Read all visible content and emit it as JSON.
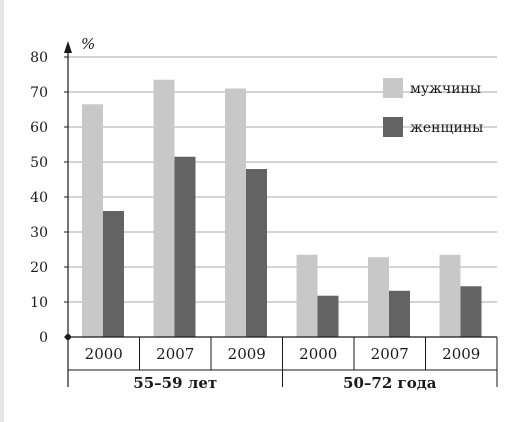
{
  "chart_data": {
    "type": "bar",
    "ylabel": "%",
    "ylim": [
      0,
      80
    ],
    "yticks": [
      "0",
      "10",
      "20",
      "30",
      "40",
      "50",
      "60",
      "70",
      "80"
    ],
    "grid": true,
    "legend_position": "top-right",
    "groups": [
      {
        "label": "55–59 лет",
        "categories": [
          "2000",
          "2007",
          "2009"
        ]
      },
      {
        "label": "50–72 года",
        "categories": [
          "2000",
          "2007",
          "2009"
        ]
      }
    ],
    "categories": [
      "2000",
      "2007",
      "2009",
      "2000",
      "2007",
      "2009"
    ],
    "series": [
      {
        "name": "мужчины",
        "color": "#c8c8c8",
        "values": [
          66.5,
          73.5,
          71,
          23.5,
          22.8,
          23.5
        ]
      },
      {
        "name": "женщины",
        "color": "#636363",
        "values": [
          36,
          51.5,
          48,
          11.8,
          13.2,
          14.5
        ]
      }
    ]
  }
}
